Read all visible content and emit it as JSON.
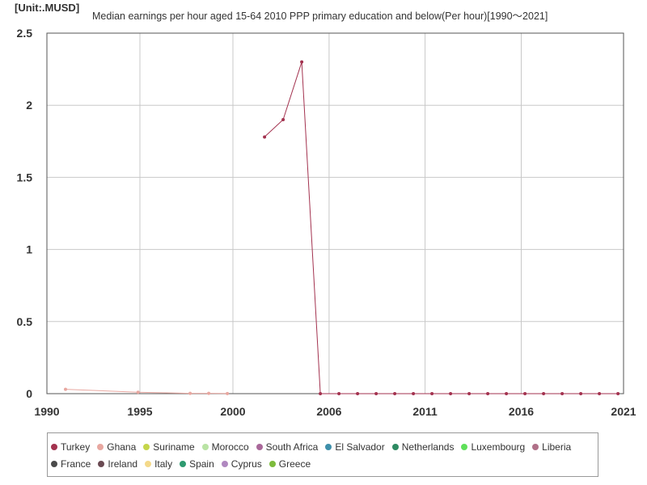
{
  "unit_label": "[Unit:.MUSD]",
  "chart_data": {
    "type": "line",
    "title": "Median earnings per hour aged 15-64 2010 PPP primary education and below(Per hour)[1990～2021]",
    "xlabel": "",
    "ylabel": "",
    "xlim": [
      1990,
      2021
    ],
    "ylim": [
      0,
      2.5
    ],
    "x_ticks": [
      "1990",
      "1995",
      "2000",
      "2006",
      "2011",
      "2016",
      "2021"
    ],
    "x_tick_values": [
      1990,
      1995,
      2000,
      2005.17,
      2010.33,
      2015.5,
      2021
    ],
    "y_ticks": [
      "0",
      "0.5",
      "1",
      "1.5",
      "2",
      "2.5"
    ],
    "y_tick_values": [
      0,
      0.5,
      1,
      1.5,
      2,
      2.5
    ],
    "grid": true,
    "legend_position": "bottom",
    "series": [
      {
        "name": "Turkey",
        "color": "#a3324f",
        "points": [
          [
            2001.7,
            1.78
          ],
          [
            2002.7,
            1.9
          ],
          [
            2003.7,
            2.3
          ],
          [
            2004.7,
            0.0
          ],
          [
            2005.7,
            0.0
          ],
          [
            2006.7,
            0.0
          ],
          [
            2007.7,
            0.0
          ],
          [
            2008.7,
            0.0
          ],
          [
            2009.7,
            0.0
          ],
          [
            2010.7,
            0.0
          ],
          [
            2011.7,
            0.0
          ],
          [
            2012.7,
            0.0
          ],
          [
            2013.7,
            0.0
          ],
          [
            2014.7,
            0.0
          ],
          [
            2015.7,
            0.0
          ],
          [
            2016.7,
            0.0
          ],
          [
            2017.7,
            0.0
          ],
          [
            2018.7,
            0.0
          ],
          [
            2019.7,
            0.0
          ],
          [
            2020.7,
            0.0
          ]
        ]
      },
      {
        "name": "Ghana",
        "color": "#e8a7a0",
        "points": [
          [
            1991.0,
            0.03
          ],
          [
            1994.9,
            0.01
          ],
          [
            1997.7,
            0.002
          ],
          [
            1998.7,
            0.002
          ],
          [
            1999.7,
            0.001
          ]
        ]
      },
      {
        "name": "Suriname",
        "color": "#c5d64a",
        "points": []
      },
      {
        "name": "Morocco",
        "color": "#b9e3a4",
        "points": []
      },
      {
        "name": "South Africa",
        "color": "#a9689a",
        "points": []
      },
      {
        "name": "El Salvador",
        "color": "#3e8faa",
        "points": []
      },
      {
        "name": "Netherlands",
        "color": "#2d8a62",
        "points": []
      },
      {
        "name": "Luxembourg",
        "color": "#5fe05a",
        "points": []
      },
      {
        "name": "Liberia",
        "color": "#b07088",
        "points": []
      },
      {
        "name": "France",
        "color": "#4a4a4a",
        "points": []
      },
      {
        "name": "Ireland",
        "color": "#6a4a52",
        "points": []
      },
      {
        "name": "Italy",
        "color": "#f4d98a",
        "points": []
      },
      {
        "name": "Spain",
        "color": "#2e9a70",
        "points": []
      },
      {
        "name": "Cyprus",
        "color": "#b088c0",
        "points": []
      },
      {
        "name": "Greece",
        "color": "#7dbb3c",
        "points": []
      }
    ]
  }
}
